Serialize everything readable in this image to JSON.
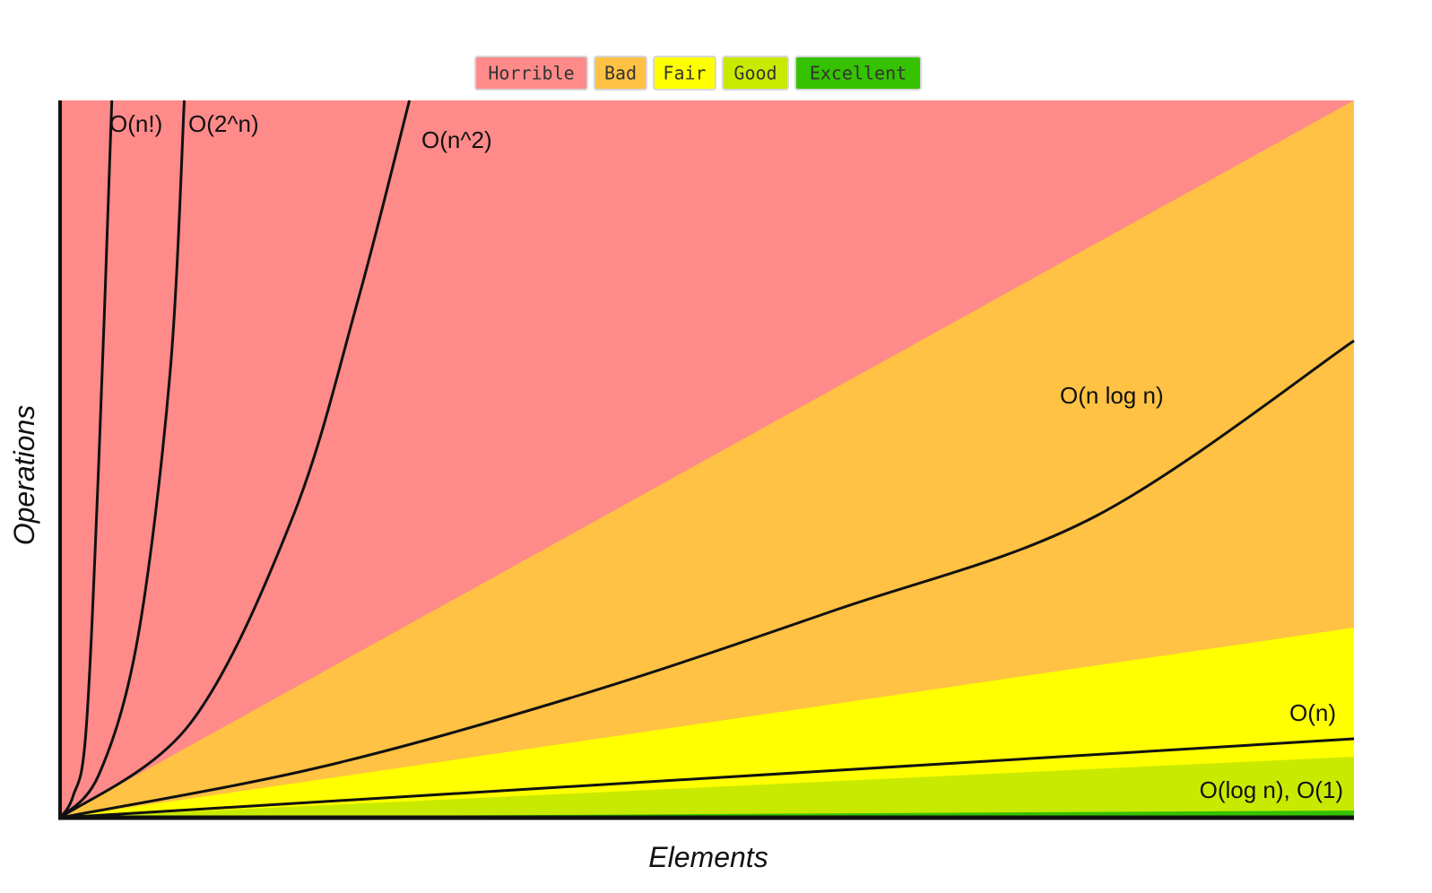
{
  "chart_data": {
    "type": "area",
    "xlabel": "Elements",
    "ylabel": "Operations",
    "xlim": [
      0,
      100
    ],
    "ylim": [
      0,
      1000
    ],
    "grid": false,
    "legend_position": "top-center",
    "legend": [
      {
        "label": "Horrible",
        "color": "#ff8a8a"
      },
      {
        "label": "Bad",
        "color": "#ffc244"
      },
      {
        "label": "Fair",
        "color": "#ffff00"
      },
      {
        "label": "Good",
        "color": "#c8ea00"
      },
      {
        "label": "Excellent",
        "color": "#35c200"
      }
    ],
    "regions": [
      {
        "name": "Horrible",
        "color": "#ff8a8a",
        "upper_at_x100": 1000
      },
      {
        "name": "Bad",
        "color": "#ffc244",
        "upper_at_x100": 1000
      },
      {
        "name": "Fair",
        "color": "#ffff00",
        "upper_at_x100": 265
      },
      {
        "name": "Good",
        "color": "#c8ea00",
        "upper_at_x100": 85
      },
      {
        "name": "Excellent",
        "color": "#35c200",
        "upper_at_x100": 10
      }
    ],
    "series": [
      {
        "name": "O(n!)",
        "x": [
          0,
          1,
          2,
          3,
          4
        ],
        "y": [
          0,
          30,
          120,
          500,
          1000
        ]
      },
      {
        "name": "O(2^n)",
        "x": [
          0,
          3,
          6,
          8.5,
          9.6
        ],
        "y": [
          0,
          60,
          250,
          620,
          1000
        ]
      },
      {
        "name": "O(n^2)",
        "x": [
          0,
          10,
          18,
          23,
          27
        ],
        "y": [
          0,
          130,
          420,
          720,
          1000
        ]
      },
      {
        "name": "O(n log n)",
        "x": [
          0,
          20,
          40,
          60,
          80,
          100
        ],
        "y": [
          0,
          70,
          170,
          290,
          420,
          665
        ]
      },
      {
        "name": "O(n)",
        "x": [
          0,
          100
        ],
        "y": [
          0,
          110
        ]
      },
      {
        "name": "O(log n), O(1)",
        "x": [
          0,
          100
        ],
        "y": [
          0,
          0
        ]
      }
    ]
  },
  "colors": {
    "axis": "#111111",
    "curve": "#111111"
  }
}
